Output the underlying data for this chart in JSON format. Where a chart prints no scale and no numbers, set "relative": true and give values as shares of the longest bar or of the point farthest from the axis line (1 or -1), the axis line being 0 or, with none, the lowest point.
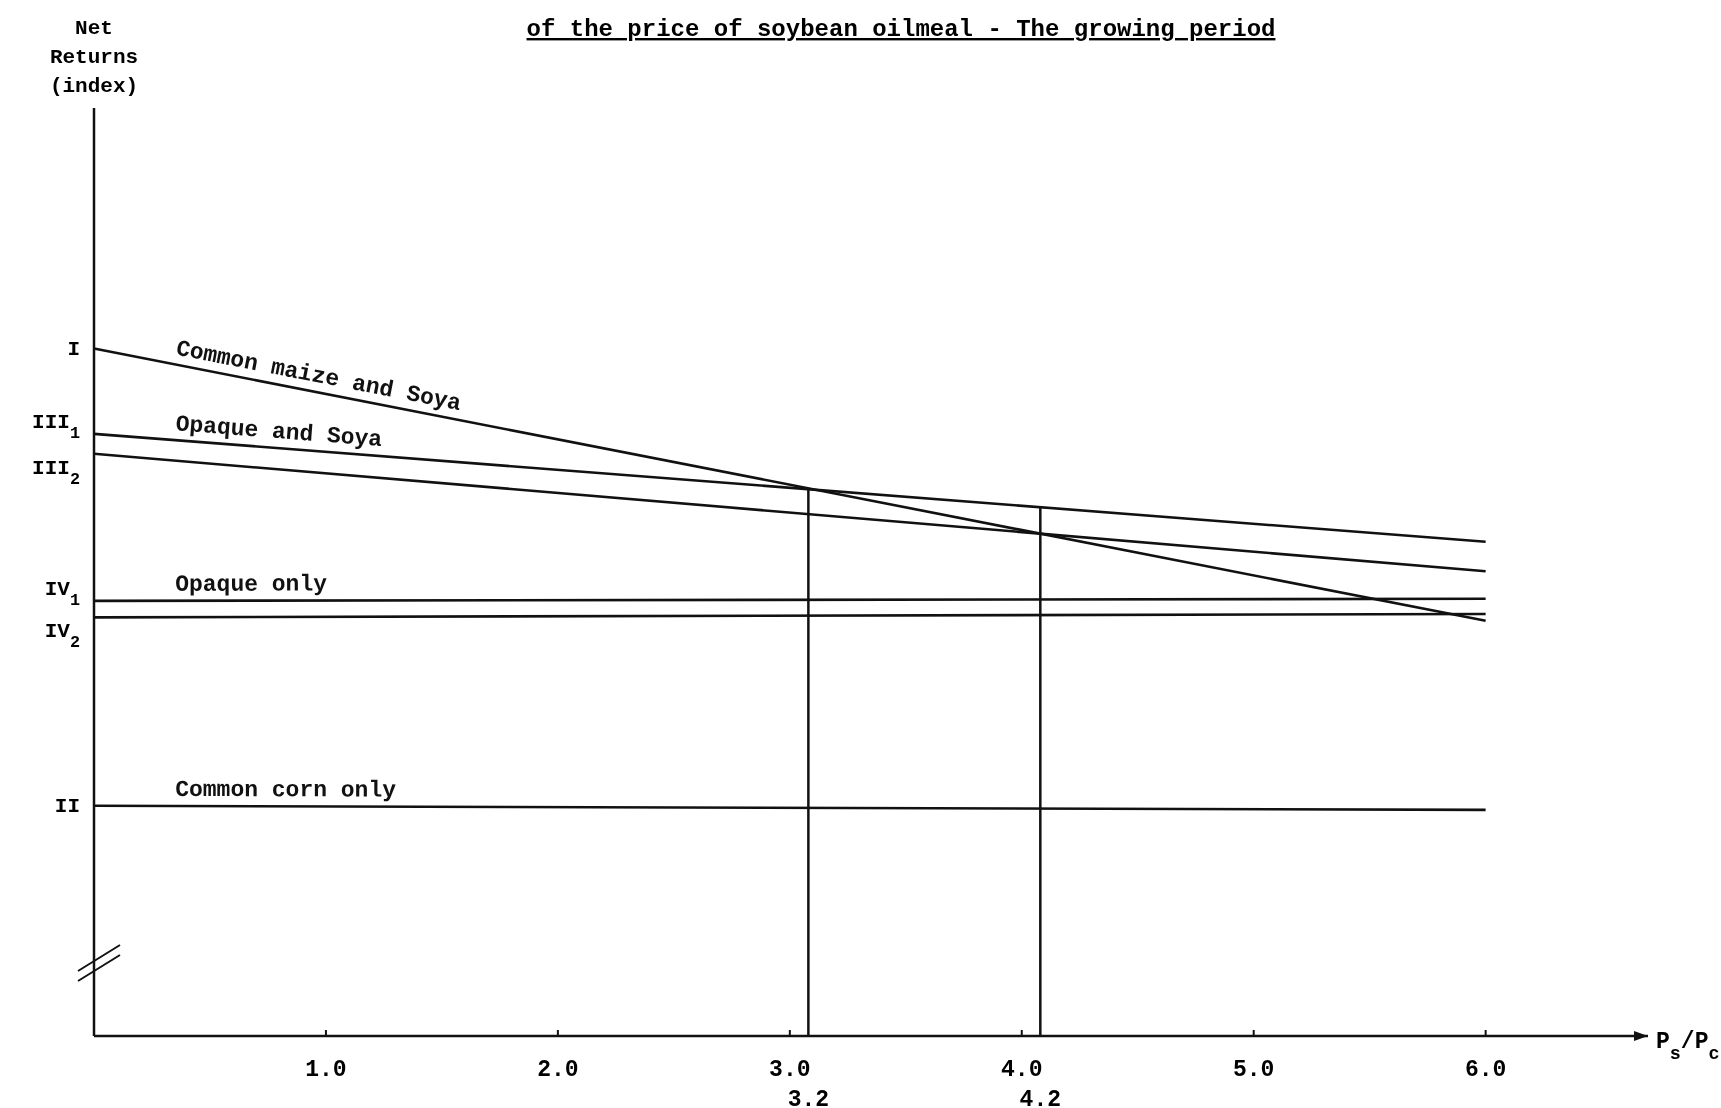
{
  "chart_data": {
    "type": "line",
    "title": "of the price of soybean oilmeal - The growing period",
    "xlabel": "P$_{s}$/P$_{c}$",
    "relative": true,
    "legend": false,
    "grid": false,
    "marker": "none",
    "line_style": "solid",
    "xlim": [
      0,
      6.7
    ],
    "xticks": [
      {
        "value": 1,
        "label": "1.0"
      },
      {
        "value": 2,
        "label": "2.0"
      },
      {
        "value": 3,
        "label": "3.0"
      },
      {
        "value": 4,
        "label": "4.0"
      },
      {
        "value": 5,
        "label": "5.0"
      },
      {
        "value": 6,
        "label": "6.0"
      }
    ],
    "x": [
      0,
      6.0
    ],
    "series": [
      {
        "name": "Common maize and Soya",
        "color": "#111111",
        "values": [
          1.0,
          0.604
        ]
      },
      {
        "name": "Opaque and Soya",
        "color": "#111111",
        "values": [
          0.876,
          0.719
        ]
      },
      {
        "color": "#111111",
        "values": [
          0.847,
          0.676
        ]
      },
      {
        "name": "Opaque only",
        "color": "#111111",
        "values": [
          0.633,
          0.636
        ]
      },
      {
        "color": "#111111",
        "values": [
          0.609,
          0.614
        ]
      },
      {
        "name": "Common corn only",
        "color": "#111111",
        "values": [
          0.335,
          0.329
        ]
      }
    ],
    "ref_lines": [
      {
        "axis": "x",
        "value": 3.08,
        "color": "#111111"
      },
      {
        "axis": "x",
        "value": 4.08,
        "color": "#111111"
      }
    ],
    "annotations": [
      "Net Returns (index)",
      "3.2",
      "4.2",
      "I",
      "III$_{1}$",
      "III$_{2}$",
      "IV$_{1}$",
      "IV$_{2}$",
      "II"
    ]
  }
}
